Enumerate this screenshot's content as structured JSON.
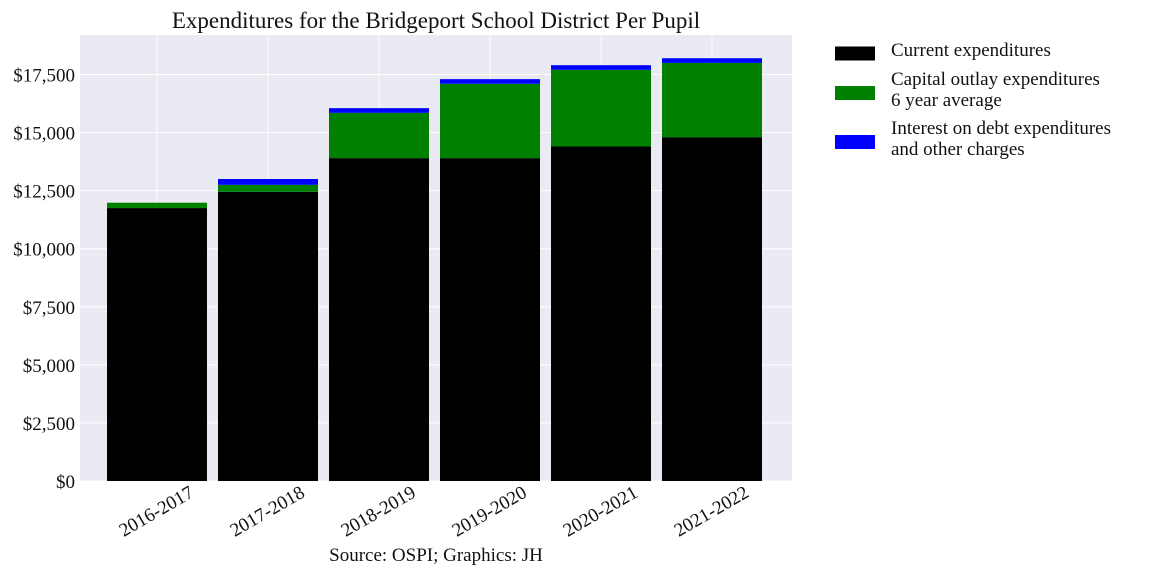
{
  "chart_data": {
    "type": "bar",
    "stacked": true,
    "title": "Expenditures for the Bridgeport School District Per Pupil",
    "caption": "Source: OSPI; Graphics: JH",
    "xlabel": "",
    "ylabel": "",
    "categories": [
      "2016-2017",
      "2017-2018",
      "2018-2019",
      "2019-2020",
      "2020-2021",
      "2021-2022"
    ],
    "series": [
      {
        "name_lines": [
          "Current expenditures"
        ],
        "color": "#000000",
        "values": [
          11750,
          12450,
          13900,
          13900,
          14400,
          14800
        ]
      },
      {
        "name_lines": [
          "Capital outlay expenditures",
          "6 year average"
        ],
        "color": "#008000",
        "values": [
          230,
          300,
          1950,
          3200,
          3300,
          3200
        ]
      },
      {
        "name_lines": [
          "Interest on debt expenditures",
          "and other charges"
        ],
        "color": "#0000ff",
        "values": [
          0,
          250,
          200,
          200,
          200,
          200
        ]
      }
    ],
    "ylim": [
      0,
      19200
    ],
    "yticks": [
      0,
      2500,
      5000,
      7500,
      10000,
      12500,
      15000,
      17500
    ],
    "ytick_labels": [
      "$0",
      "$2,500",
      "$5,000",
      "$7,500",
      "$10,000",
      "$12,500",
      "$15,000",
      "$17,500"
    ],
    "grid": true,
    "legend_position": "outside-right-top",
    "plot_background": "#eaeaf2"
  }
}
